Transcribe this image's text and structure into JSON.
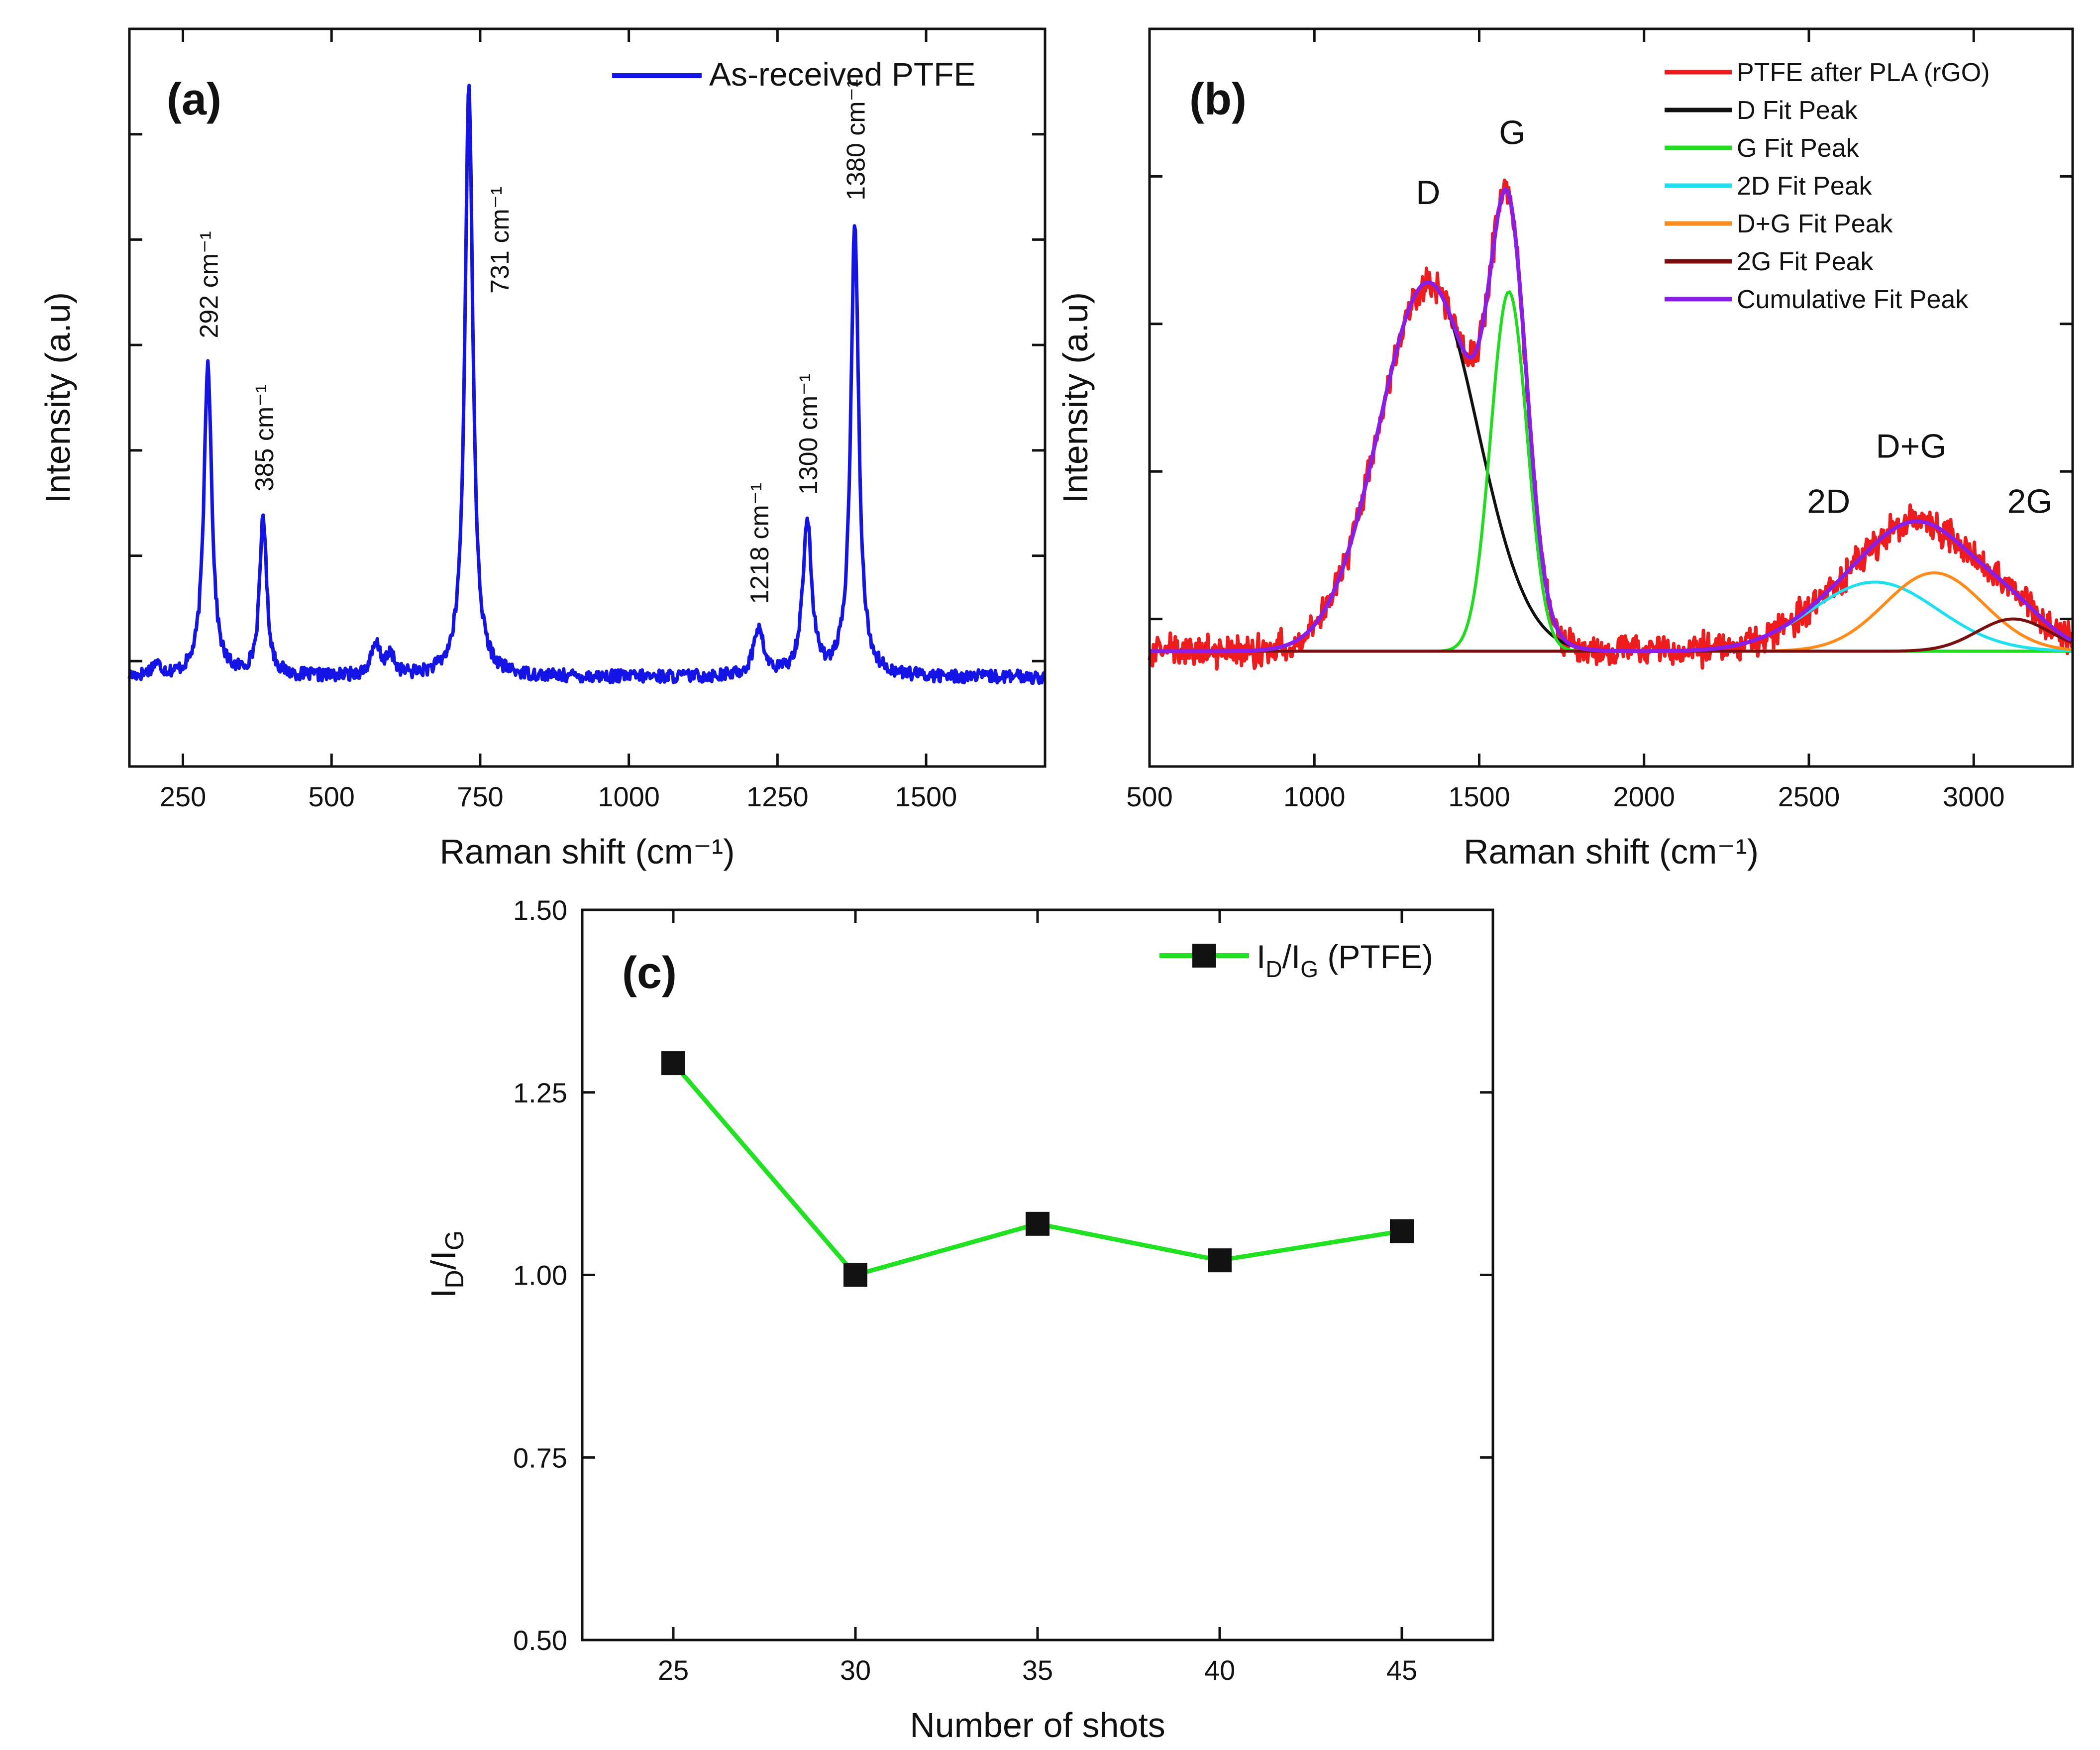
{
  "chart_data": [
    {
      "panel": "(a)",
      "type": "line",
      "xlabel": "Raman shift (cm⁻¹)",
      "ylabel": "Intensity (a.u)",
      "xlim": [
        160,
        1700
      ],
      "ylim": [
        -0.12,
        1.12
      ],
      "xticks": [
        250,
        500,
        750,
        1000,
        1250,
        1500
      ],
      "xtick_labels": [
        "250",
        "500",
        "750",
        "1000",
        "1250",
        "1500"
      ],
      "legend": "top-right",
      "series": [
        {
          "name": "As-received PTFE",
          "color": "#1414e6",
          "baseline": 0.03,
          "peaks": [
            {
              "x": 205,
              "h": 0.02,
              "w": 10
            },
            {
              "x": 292,
              "h": 0.53,
              "w": 8
            },
            {
              "x": 385,
              "h": 0.27,
              "w": 7
            },
            {
              "x": 575,
              "h": 0.05,
              "w": 10
            },
            {
              "x": 600,
              "h": 0.03,
              "w": 8
            },
            {
              "x": 731,
              "h": 1.0,
              "w": 8
            },
            {
              "x": 1218,
              "h": 0.08,
              "w": 10
            },
            {
              "x": 1300,
              "h": 0.26,
              "w": 9
            },
            {
              "x": 1380,
              "h": 0.76,
              "w": 8
            }
          ]
        }
      ],
      "annotations": [
        {
          "x": 292,
          "text": "292 cm⁻¹"
        },
        {
          "x": 385,
          "text": "385 cm⁻¹"
        },
        {
          "x": 731,
          "text": "731 cm⁻¹"
        },
        {
          "x": 1218,
          "text": "1218 cm⁻¹"
        },
        {
          "x": 1300,
          "text": "1300 cm⁻¹"
        },
        {
          "x": 1380,
          "text": "1380 cm⁻¹"
        }
      ]
    },
    {
      "panel": "(b)",
      "type": "line",
      "xlabel": "Raman shift (cm⁻¹)",
      "ylabel": "Intensity (a.u)",
      "xlim": [
        500,
        3300
      ],
      "ylim": [
        -0.25,
        1.35
      ],
      "xticks": [
        500,
        1000,
        1500,
        2000,
        2500,
        3000
      ],
      "xtick_labels": [
        "500",
        "1000",
        "1500",
        "2000",
        "2500",
        "3000"
      ],
      "legend": "top-right",
      "series": [
        {
          "name": "PTFE after PLA (rGO)",
          "color": "#ee1c1c",
          "kind": "noisy-sum",
          "noise": 0.028
        },
        {
          "name": "D Fit Peak",
          "color": "#111111",
          "center": 1345,
          "height": 0.8,
          "width": 150
        },
        {
          "name": "G Fit Peak",
          "color": "#1fdc1f",
          "center": 1590,
          "height": 0.78,
          "width": 55
        },
        {
          "name": "2D Fit Peak",
          "color": "#20e0f0",
          "center": 2700,
          "height": 0.15,
          "width": 190
        },
        {
          "name": "D+G Fit Peak",
          "color": "#ff8c1a",
          "center": 2880,
          "height": 0.17,
          "width": 150
        },
        {
          "name": "2G Fit Peak",
          "color": "#7a0f0f",
          "center": 3120,
          "height": 0.07,
          "width": 110
        },
        {
          "name": "Cumulative Fit Peak",
          "color": "#8a1ee8",
          "kind": "sum"
        }
      ],
      "peak_labels": [
        {
          "text": "D",
          "x": 1345,
          "y": 0.97
        },
        {
          "text": "G",
          "x": 1600,
          "y": 1.1
        },
        {
          "text": "2D",
          "x": 2560,
          "y": 0.3
        },
        {
          "text": "D+G",
          "x": 2810,
          "y": 0.42
        },
        {
          "text": "2G",
          "x": 3170,
          "y": 0.3
        }
      ]
    },
    {
      "panel": "(c)",
      "type": "line",
      "markers": "square",
      "xlabel": "Number of shots",
      "ylabel": "I_D/I_G",
      "x": [
        25,
        30,
        35,
        40,
        45
      ],
      "xlim": [
        22.5,
        47.5
      ],
      "ylim": [
        0.5,
        1.5
      ],
      "xticks": [
        25,
        30,
        35,
        40,
        45
      ],
      "xtick_labels": [
        "25",
        "30",
        "35",
        "40",
        "45"
      ],
      "yticks": [
        0.5,
        0.75,
        1.0,
        1.25,
        1.5
      ],
      "ytick_labels": [
        "0.50",
        "0.75",
        "1.00",
        "1.25",
        "1.50"
      ],
      "legend": "top-right",
      "series": [
        {
          "name": "I_D/I_G (PTFE)",
          "color": "#22e022",
          "marker_color": "#111111",
          "values": [
            1.29,
            1.0,
            1.07,
            1.02,
            1.06
          ]
        }
      ]
    }
  ],
  "labels": {
    "a_panel": "(a)",
    "a_legend": "As-received PTFE",
    "b_panel": "(b)",
    "c_panel": "(c)",
    "c_legend_main": "I",
    "c_legend_sub_d": "D",
    "c_legend_slash": "/I",
    "c_legend_sub_g": "G",
    "c_legend_suffix": " (PTFE)",
    "c_ylabel_main": "I",
    "c_ylabel_sub_d": "D",
    "c_ylabel_slash": "/I",
    "c_ylabel_sub_g": "G"
  }
}
